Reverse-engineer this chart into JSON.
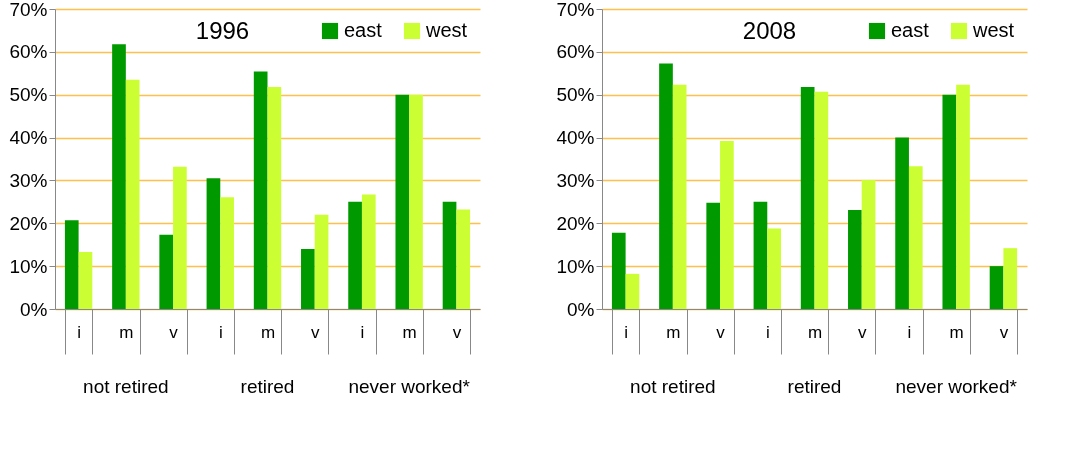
{
  "chart_data": [
    {
      "type": "bar",
      "title": "1996",
      "categories": [
        "i",
        "m",
        "v",
        "i",
        "m",
        "v",
        "i",
        "m",
        "v"
      ],
      "series": [
        {
          "name": "east",
          "color": "#009900",
          "values": [
            20.7,
            61.8,
            17.3,
            30.5,
            55.4,
            14,
            25,
            50,
            25
          ]
        },
        {
          "name": "west",
          "color": "#ccff33",
          "values": [
            13.3,
            53.5,
            33.2,
            26.1,
            51.8,
            22,
            26.7,
            50,
            23.2
          ]
        }
      ],
      "ylim": [
        0,
        70
      ],
      "yticks": [
        {
          "value": 0,
          "label": "0%"
        },
        {
          "value": 10,
          "label": "10%"
        },
        {
          "value": 20,
          "label": "20%"
        },
        {
          "value": 30,
          "label": "30%"
        },
        {
          "value": 40,
          "label": "40%"
        },
        {
          "value": 50,
          "label": "50%"
        },
        {
          "value": 60,
          "label": "60%"
        },
        {
          "value": 70,
          "label": "70%"
        }
      ],
      "grid": "y",
      "legend": "top right",
      "annotations": [
        "not retired",
        "retired",
        "never worked*"
      ]
    },
    {
      "type": "bar",
      "title": "2008",
      "categories": [
        "i",
        "m",
        "v",
        "i",
        "m",
        "v",
        "i",
        "m",
        "v"
      ],
      "series": [
        {
          "name": "east",
          "color": "#009900",
          "values": [
            17.8,
            57.3,
            24.8,
            25,
            51.8,
            23.1,
            40,
            50,
            10
          ]
        },
        {
          "name": "west",
          "color": "#ccff33",
          "values": [
            8.2,
            52.3,
            39.2,
            18.8,
            50.7,
            30.1,
            33.3,
            52.3,
            14.2
          ]
        }
      ],
      "ylim": [
        0,
        70
      ],
      "yticks": [
        {
          "value": 0,
          "label": "0%"
        },
        {
          "value": 10,
          "label": "10%"
        },
        {
          "value": 20,
          "label": "20%"
        },
        {
          "value": 30,
          "label": "30%"
        },
        {
          "value": 40,
          "label": "40%"
        },
        {
          "value": 50,
          "label": "50%"
        },
        {
          "value": 60,
          "label": "60%"
        },
        {
          "value": 70,
          "label": "70%"
        }
      ],
      "grid": "y",
      "legend": "top right",
      "annotations": [
        "not retired",
        "retired",
        "never worked*"
      ]
    }
  ]
}
